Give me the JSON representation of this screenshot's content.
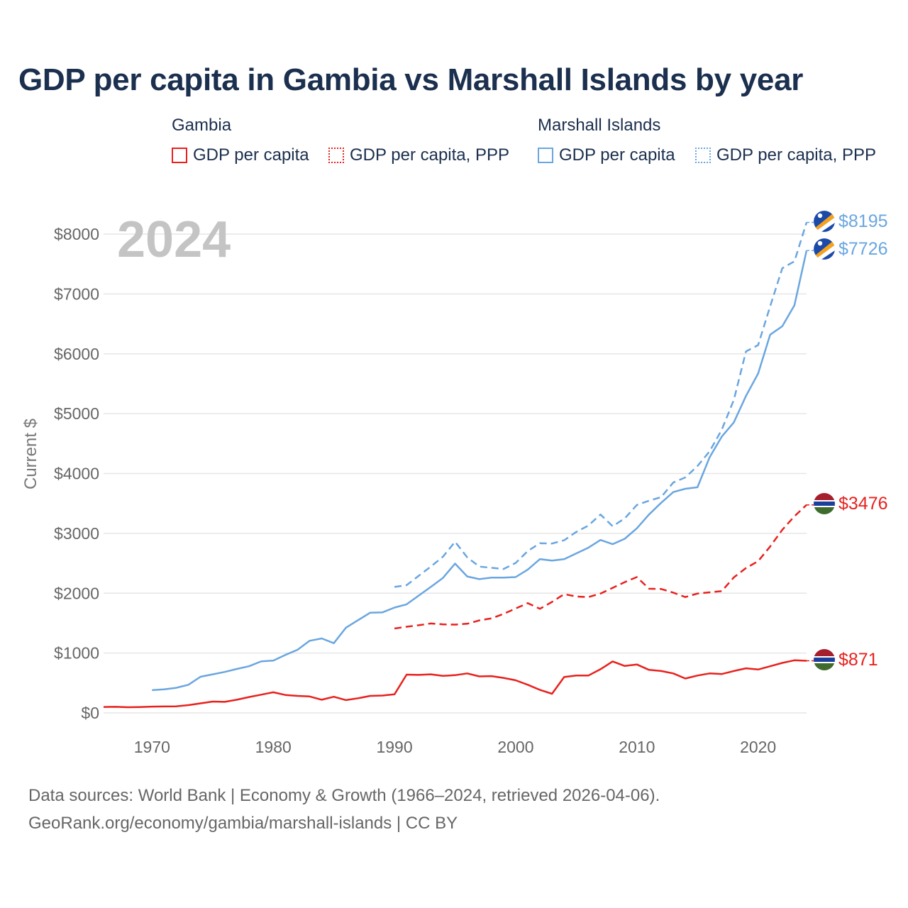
{
  "title": "GDP per capita in Gambia vs Marshall Islands by year",
  "legend": {
    "gambia": {
      "label": "Gambia",
      "gdp": "GDP per capita",
      "ppp": "GDP per capita, PPP"
    },
    "marshall": {
      "label": "Marshall Islands",
      "gdp": "GDP per capita",
      "ppp": "GDP per capita, PPP"
    }
  },
  "colors": {
    "gambia": "#e8211d",
    "marshall": "#6aa6e0",
    "grid": "#e6e6e6",
    "year_watermark": "#c4c4c4"
  },
  "source": {
    "line1": "Data sources: World Bank | Economy & Growth (1966–2024, retrieved 2026-04-06).",
    "line2": "GeoRank.org/economy/gambia/marshall-islands | CC BY"
  },
  "chart_data": {
    "type": "line",
    "year_watermark": "2024",
    "ylabel": "Current $",
    "xlim": [
      1966,
      2024
    ],
    "ylim": [
      0,
      8000
    ],
    "xticks": [
      1970,
      1980,
      1990,
      2000,
      2010,
      2020
    ],
    "yticks": [
      0,
      1000,
      2000,
      3000,
      4000,
      5000,
      6000,
      7000,
      8000
    ],
    "ytick_labels": [
      "$0",
      "$1000",
      "$2000",
      "$3000",
      "$4000",
      "$5000",
      "$6000",
      "$7000",
      "$8000"
    ],
    "series": [
      {
        "name": "Gambia — GDP per capita",
        "country": "Gambia",
        "style": "solid",
        "color": "#e8211d",
        "end_label": "$871",
        "x": [
          1966,
          1967,
          1968,
          1969,
          1970,
          1971,
          1972,
          1973,
          1974,
          1975,
          1976,
          1977,
          1978,
          1979,
          1980,
          1981,
          1982,
          1983,
          1984,
          1985,
          1986,
          1987,
          1988,
          1989,
          1990,
          1991,
          1992,
          1993,
          1994,
          1995,
          1996,
          1997,
          1998,
          1999,
          2000,
          2001,
          2002,
          2003,
          2004,
          2005,
          2006,
          2007,
          2008,
          2009,
          2010,
          2011,
          2012,
          2013,
          2014,
          2015,
          2016,
          2017,
          2018,
          2019,
          2020,
          2021,
          2022,
          2023,
          2024
        ],
        "values": [
          100,
          102,
          95,
          98,
          105,
          108,
          110,
          130,
          160,
          190,
          185,
          220,
          265,
          305,
          345,
          300,
          285,
          275,
          220,
          270,
          215,
          245,
          285,
          290,
          310,
          640,
          635,
          645,
          620,
          630,
          660,
          610,
          615,
          585,
          545,
          470,
          385,
          320,
          600,
          625,
          625,
          730,
          860,
          785,
          810,
          720,
          700,
          660,
          575,
          625,
          660,
          650,
          700,
          745,
          725,
          780,
          835,
          880,
          871
        ]
      },
      {
        "name": "Gambia — GDP per capita, PPP",
        "country": "Gambia",
        "style": "dashed",
        "color": "#e8211d",
        "end_label": "$3476",
        "x": [
          1990,
          1991,
          1992,
          1993,
          1994,
          1995,
          1996,
          1997,
          1998,
          1999,
          2000,
          2001,
          2002,
          2003,
          2004,
          2005,
          2006,
          2007,
          2008,
          2009,
          2010,
          2011,
          2012,
          2013,
          2014,
          2015,
          2016,
          2017,
          2018,
          2019,
          2020,
          2021,
          2022,
          2023,
          2024
        ],
        "values": [
          1410,
          1440,
          1465,
          1495,
          1480,
          1475,
          1490,
          1545,
          1580,
          1655,
          1745,
          1835,
          1740,
          1855,
          1985,
          1945,
          1935,
          1995,
          2090,
          2185,
          2270,
          2075,
          2070,
          2010,
          1935,
          1995,
          2015,
          2035,
          2265,
          2420,
          2535,
          2780,
          3060,
          3285,
          3476
        ]
      },
      {
        "name": "Marshall Islands — GDP per capita",
        "country": "Marshall Islands",
        "style": "solid",
        "color": "#6aa6e0",
        "end_label": "$7726",
        "x": [
          1970,
          1971,
          1972,
          1973,
          1974,
          1975,
          1976,
          1977,
          1978,
          1979,
          1980,
          1981,
          1982,
          1983,
          1984,
          1985,
          1986,
          1987,
          1988,
          1989,
          1990,
          1991,
          1992,
          1993,
          1994,
          1995,
          1996,
          1997,
          1998,
          1999,
          2000,
          2001,
          2002,
          2003,
          2004,
          2005,
          2006,
          2007,
          2008,
          2009,
          2010,
          2011,
          2012,
          2013,
          2014,
          2015,
          2016,
          2017,
          2018,
          2019,
          2020,
          2021,
          2022,
          2023,
          2024
        ],
        "values": [
          380,
          395,
          420,
          470,
          605,
          645,
          685,
          735,
          780,
          860,
          875,
          970,
          1055,
          1205,
          1245,
          1165,
          1425,
          1550,
          1675,
          1680,
          1760,
          1815,
          1960,
          2105,
          2255,
          2495,
          2280,
          2235,
          2260,
          2260,
          2270,
          2395,
          2570,
          2545,
          2570,
          2665,
          2760,
          2890,
          2820,
          2910,
          3085,
          3315,
          3510,
          3690,
          3745,
          3770,
          4270,
          4615,
          4855,
          5295,
          5670,
          6320,
          6460,
          6810,
          7726
        ]
      },
      {
        "name": "Marshall Islands — GDP per capita, PPP",
        "country": "Marshall Islands",
        "style": "dashed",
        "color": "#6aa6e0",
        "end_label": "$8195",
        "x": [
          1990,
          1991,
          1992,
          1993,
          1994,
          1995,
          1996,
          1997,
          1998,
          1999,
          2000,
          2001,
          2002,
          2003,
          2004,
          2005,
          2006,
          2007,
          2008,
          2009,
          2010,
          2011,
          2012,
          2013,
          2014,
          2015,
          2016,
          2017,
          2018,
          2019,
          2020,
          2021,
          2022,
          2023,
          2024
        ],
        "values": [
          2105,
          2135,
          2290,
          2445,
          2610,
          2860,
          2600,
          2445,
          2425,
          2405,
          2505,
          2705,
          2835,
          2830,
          2885,
          3025,
          3130,
          3315,
          3120,
          3250,
          3475,
          3545,
          3605,
          3850,
          3935,
          4125,
          4370,
          4730,
          5230,
          6040,
          6145,
          6795,
          7430,
          7545,
          8195
        ]
      }
    ]
  }
}
